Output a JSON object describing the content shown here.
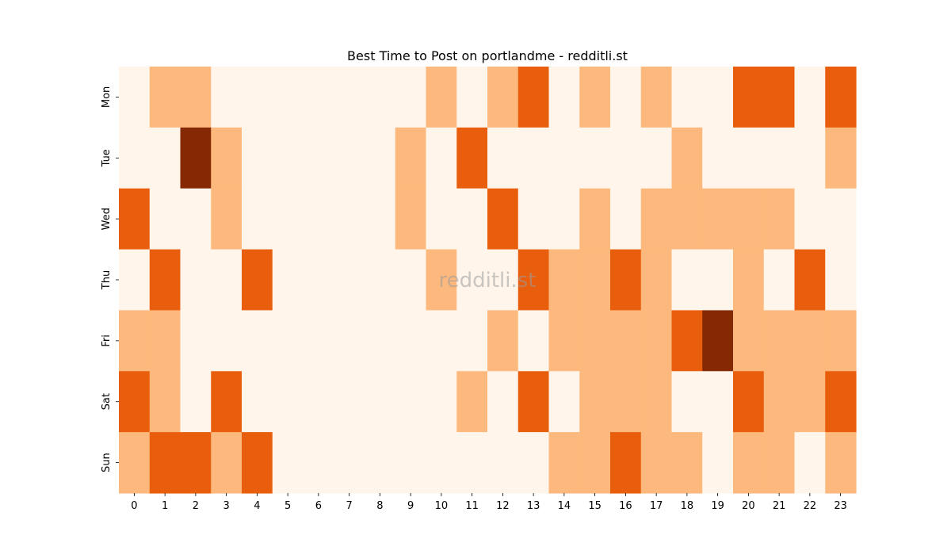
{
  "chart_data": {
    "type": "heatmap",
    "title": "Best Time to Post on portlandme - redditli.st",
    "xlabel": "",
    "ylabel": "",
    "x_categories": [
      "0",
      "1",
      "2",
      "3",
      "4",
      "5",
      "6",
      "7",
      "8",
      "9",
      "10",
      "11",
      "12",
      "13",
      "14",
      "15",
      "16",
      "17",
      "18",
      "19",
      "20",
      "21",
      "22",
      "23"
    ],
    "y_categories": [
      "Mon",
      "Tue",
      "Wed",
      "Thu",
      "Fri",
      "Sat",
      "Sun"
    ],
    "values": [
      [
        0,
        1,
        1,
        0,
        0,
        0,
        0,
        0,
        0,
        0,
        1,
        0,
        1,
        2,
        0,
        1,
        0,
        1,
        0,
        0,
        2,
        2,
        0,
        2
      ],
      [
        0,
        0,
        3,
        1,
        0,
        0,
        0,
        0,
        0,
        1,
        0,
        2,
        0,
        0,
        0,
        0,
        0,
        0,
        1,
        0,
        0,
        0,
        0,
        1
      ],
      [
        2,
        0,
        0,
        1,
        0,
        0,
        0,
        0,
        0,
        1,
        0,
        0,
        2,
        0,
        0,
        1,
        0,
        1,
        1,
        1,
        1,
        1,
        0,
        0
      ],
      [
        0,
        2,
        0,
        0,
        2,
        0,
        0,
        0,
        0,
        0,
        1,
        0,
        0,
        2,
        1,
        1,
        2,
        1,
        0,
        0,
        1,
        0,
        2,
        0
      ],
      [
        1,
        1,
        0,
        0,
        0,
        0,
        0,
        0,
        0,
        0,
        0,
        0,
        1,
        0,
        1,
        1,
        1,
        1,
        2,
        3,
        1,
        1,
        1,
        1
      ],
      [
        2,
        1,
        0,
        2,
        0,
        0,
        0,
        0,
        0,
        0,
        0,
        1,
        0,
        2,
        0,
        1,
        1,
        1,
        0,
        0,
        2,
        1,
        1,
        2
      ],
      [
        1,
        2,
        2,
        1,
        2,
        0,
        0,
        0,
        0,
        0,
        0,
        0,
        0,
        0,
        1,
        1,
        2,
        1,
        1,
        0,
        1,
        1,
        0,
        1
      ]
    ],
    "colormap": [
      "#fff5eb",
      "#fdb97d",
      "#e95e0d",
      "#842904"
    ],
    "watermark": "redditli.st",
    "legend": "none",
    "grid": false
  }
}
